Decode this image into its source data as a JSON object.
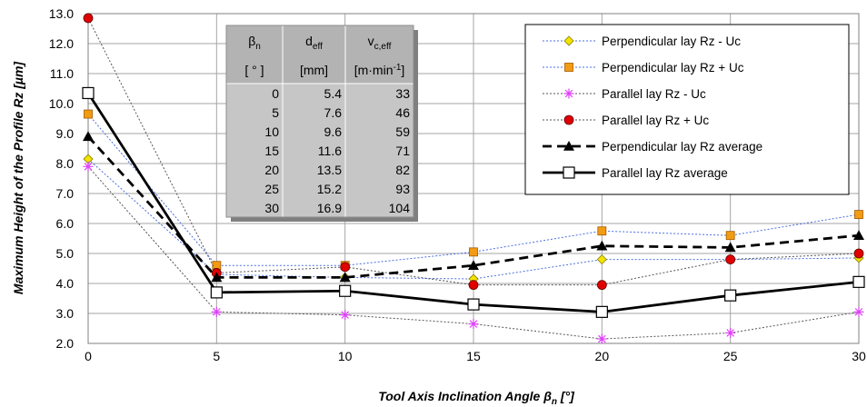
{
  "chart_data": {
    "type": "line",
    "xlabel": "Tool Axis Inclination Angle β",
    "xlabel_sub": "n",
    "xlabel_unit": " [°]",
    "ylabel": "Maximum Height of the Profile  Rz [µm]",
    "x": [
      0,
      5,
      10,
      15,
      20,
      25,
      30
    ],
    "xlim": [
      0,
      30
    ],
    "ylim": [
      2.0,
      13.0
    ],
    "x_ticks": [
      "0",
      "5",
      "10",
      "15",
      "20",
      "25",
      "30"
    ],
    "y_ticks": [
      "2.0",
      "3.0",
      "4.0",
      "5.0",
      "6.0",
      "7.0",
      "8.0",
      "9.0",
      "10.0",
      "11.0",
      "12.0",
      "13.0"
    ],
    "grid": "major",
    "legend_position": "top-right",
    "series": [
      {
        "name": "Perpendicular lay Rz - Uc",
        "values": [
          8.15,
          4.3,
          4.2,
          4.15,
          4.8,
          4.8,
          4.85
        ],
        "color": "#4a6ee0",
        "dash": "dotted",
        "marker": "diamond",
        "marker_color": "#f2e400"
      },
      {
        "name": "Perpendicular lay Rz + Uc",
        "values": [
          9.65,
          4.6,
          4.6,
          5.05,
          5.75,
          5.6,
          6.3
        ],
        "color": "#4a6ee0",
        "dash": "dotted",
        "marker": "square",
        "marker_color": "#f39c12"
      },
      {
        "name": "Parallel lay Rz - Uc",
        "values": [
          7.9,
          3.05,
          2.95,
          2.65,
          2.15,
          2.35,
          3.05
        ],
        "color": "#555555",
        "dash": "dotted",
        "marker": "asterisk",
        "marker_color": "#e040fb"
      },
      {
        "name": "Parallel lay Rz + Uc",
        "values": [
          12.85,
          4.35,
          4.55,
          3.95,
          3.95,
          4.8,
          5.0
        ],
        "color": "#555555",
        "dash": "dotted",
        "marker": "circle",
        "marker_color": "#e00000"
      },
      {
        "name": "Perpendicular lay Rz average",
        "values": [
          8.9,
          4.2,
          4.2,
          4.6,
          5.25,
          5.2,
          5.6
        ],
        "color": "#000000",
        "dash": "dashed",
        "marker": "triangle",
        "marker_color": "#000000"
      },
      {
        "name": "Parallel lay Rz average",
        "values": [
          10.35,
          3.7,
          3.75,
          3.3,
          3.05,
          3.6,
          4.05
        ],
        "color": "#000000",
        "dash": "solid",
        "marker": "square-open",
        "marker_color": "#ffffff"
      }
    ],
    "table": {
      "headers": [
        {
          "main": "β",
          "sub": "n",
          "sup": ""
        },
        {
          "main": "d",
          "sub": "eff",
          "sup": ""
        },
        {
          "main": "v",
          "sub": "c,eff",
          "sup": ""
        }
      ],
      "units": [
        {
          "main": "[ ° ]",
          "sup": "",
          "tail": ""
        },
        {
          "main": "[mm]",
          "sup": "",
          "tail": ""
        },
        {
          "main": "[m·min",
          "sup": "-1",
          "tail": "]"
        }
      ],
      "rows": [
        [
          "0",
          "5.4",
          "33"
        ],
        [
          "5",
          "7.6",
          "46"
        ],
        [
          "10",
          "9.6",
          "59"
        ],
        [
          "15",
          "11.6",
          "71"
        ],
        [
          "20",
          "13.5",
          "82"
        ],
        [
          "25",
          "15.2",
          "93"
        ],
        [
          "30",
          "16.9",
          "104"
        ]
      ]
    }
  }
}
